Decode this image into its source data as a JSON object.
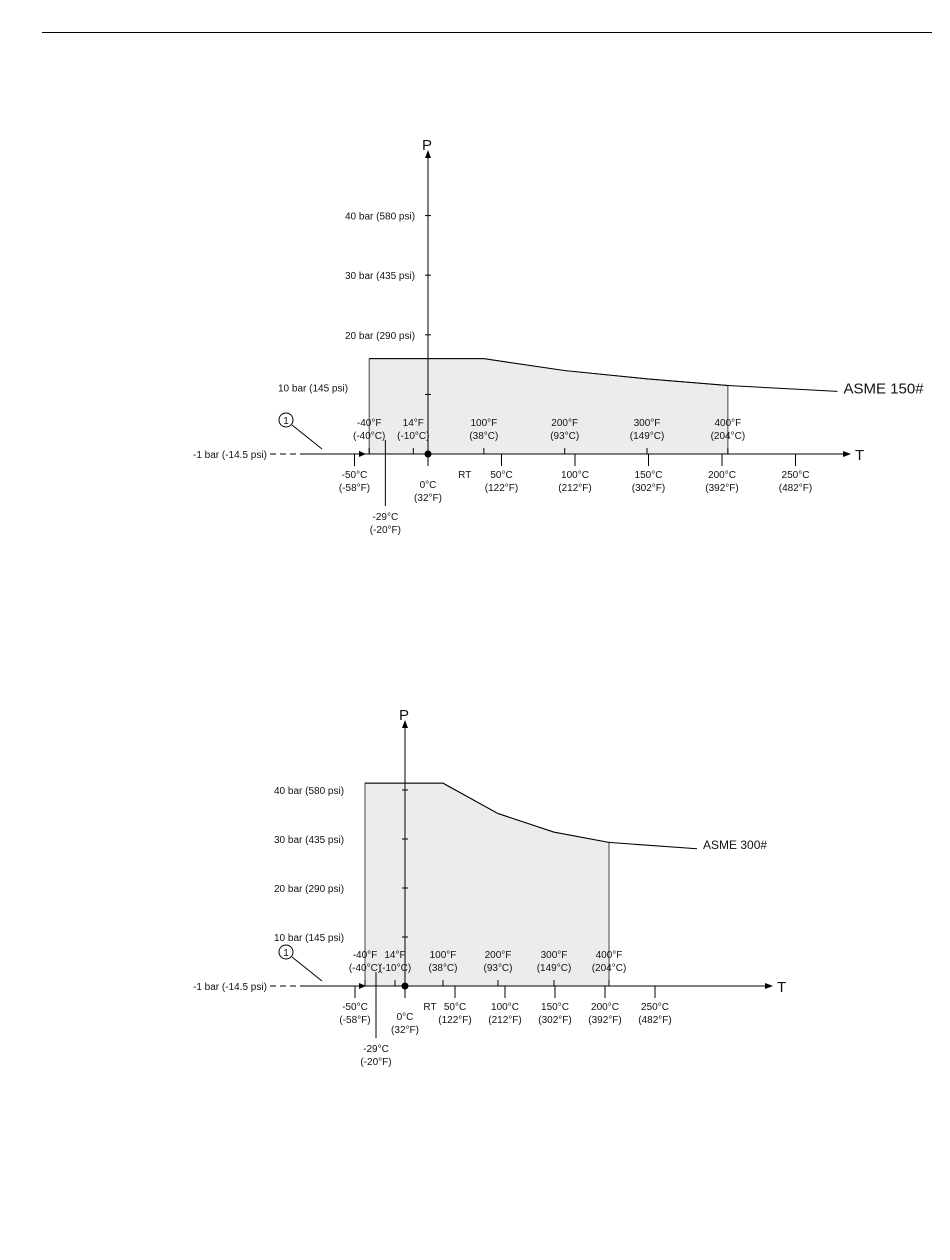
{
  "chart_data": [
    {
      "type": "area",
      "title": "",
      "xlabel": "T",
      "ylabel": "P",
      "series": [
        {
          "name": "ASME 150#",
          "x": [
            -40,
            38,
            93,
            149,
            204
          ],
          "y": [
            16,
            16,
            14,
            12.6,
            11.5
          ],
          "extends_to_x": 250,
          "extends_to_y": 10.5
        }
      ],
      "y_ticks": [
        {
          "value": 40,
          "label": "40 bar (580 psi)"
        },
        {
          "value": 30,
          "label": "30 bar (435 psi)"
        },
        {
          "value": 20,
          "label": "20 bar (290 psi)"
        },
        {
          "value": 10,
          "label": "10 bar (145 psi)"
        },
        {
          "value": -1,
          "label": "-1 bar (-14.5 psi)"
        }
      ],
      "x_ticks_top": [
        {
          "value": -40,
          "label": "-40°F",
          "sub": "(-40°C)"
        },
        {
          "value": -10,
          "label": "14°F",
          "sub": "(-10°C)"
        },
        {
          "value": 38,
          "label": "100°F",
          "sub": "(38°C)"
        },
        {
          "value": 93,
          "label": "200°F",
          "sub": "(93°C)"
        },
        {
          "value": 149,
          "label": "300°F",
          "sub": "(149°C)"
        },
        {
          "value": 204,
          "label": "400°F",
          "sub": "(204°C)"
        }
      ],
      "x_ticks_bottom": [
        {
          "value": -50,
          "label": "-50°C",
          "sub": "(-58°F)"
        },
        {
          "value": 0,
          "label": "0°C",
          "sub": "(32°F)"
        },
        {
          "value": 50,
          "label": "50°C",
          "sub": "(122°F)"
        },
        {
          "value": 100,
          "label": "100°C",
          "sub": "(212°F)"
        },
        {
          "value": 150,
          "label": "150°C",
          "sub": "(302°F)"
        },
        {
          "value": 200,
          "label": "200°C",
          "sub": "(392°F)"
        },
        {
          "value": 250,
          "label": "250°C",
          "sub": "(482°F)"
        }
      ],
      "rt_label": "RT",
      "lower_marker": {
        "value": -29,
        "label": "-29°C",
        "sub": "(-20°F)"
      },
      "callout": "1",
      "xlim": [
        -50,
        250
      ],
      "ylim": [
        -1,
        40
      ]
    },
    {
      "type": "area",
      "title": "",
      "xlabel": "T",
      "ylabel": "P",
      "series": [
        {
          "name": "ASME 300#",
          "x": [
            -40,
            38,
            93,
            149,
            204
          ],
          "y": [
            41.4,
            41.4,
            35.2,
            31.4,
            29.3
          ],
          "extends_to_x": 250,
          "extends_to_y": 28
        }
      ],
      "y_ticks": [
        {
          "value": 40,
          "label": "40 bar (580 psi)"
        },
        {
          "value": 30,
          "label": "30 bar (435 psi)"
        },
        {
          "value": 20,
          "label": "20 bar (290 psi)"
        },
        {
          "value": 10,
          "label": "10 bar (145 psi)"
        },
        {
          "value": -1,
          "label": "-1 bar (-14.5 psi)"
        }
      ],
      "x_ticks_top": [
        {
          "value": -40,
          "label": "-40°F",
          "sub": "(-40°C)"
        },
        {
          "value": -10,
          "label": "14°F",
          "sub": "(-10°C)"
        },
        {
          "value": 38,
          "label": "100°F",
          "sub": "(38°C)"
        },
        {
          "value": 93,
          "label": "200°F",
          "sub": "(93°C)"
        },
        {
          "value": 149,
          "label": "300°F",
          "sub": "(149°C)"
        },
        {
          "value": 204,
          "label": "400°F",
          "sub": "(204°C)"
        }
      ],
      "x_ticks_bottom": [
        {
          "value": -50,
          "label": "-50°C",
          "sub": "(-58°F)"
        },
        {
          "value": 0,
          "label": "0°C",
          "sub": "(32°F)"
        },
        {
          "value": 50,
          "label": "50°C",
          "sub": "(122°F)"
        },
        {
          "value": 100,
          "label": "100°C",
          "sub": "(212°F)"
        },
        {
          "value": 150,
          "label": "150°C",
          "sub": "(302°F)"
        },
        {
          "value": 200,
          "label": "200°C",
          "sub": "(392°F)"
        },
        {
          "value": 250,
          "label": "250°C",
          "sub": "(482°F)"
        }
      ],
      "rt_label": "RT",
      "lower_marker": {
        "value": -29,
        "label": "-29°C",
        "sub": "(-20°F)"
      },
      "callout": "1",
      "xlim": [
        -50,
        250
      ],
      "ylim": [
        -1,
        42
      ]
    }
  ],
  "colors": {
    "fill": "#ececec",
    "line": "#000000"
  }
}
